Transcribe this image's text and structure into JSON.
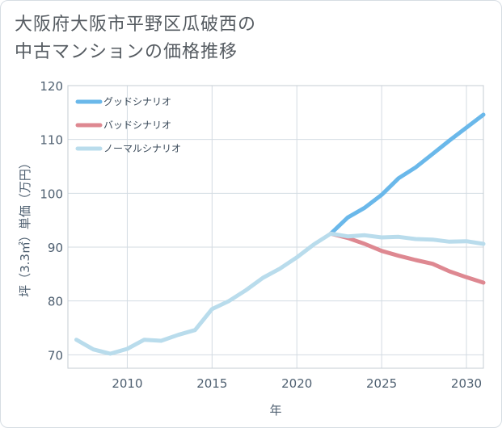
{
  "title": {
    "line1": "大阪府大阪市平野区瓜破西の",
    "line2": "中古マンションの価格推移"
  },
  "chart_data": {
    "type": "line",
    "xlabel": "年",
    "ylabel": "坪（3.3㎡）単価（万円）",
    "xlim": [
      2006.5,
      2031
    ],
    "ylim": [
      67.5,
      120
    ],
    "xticks": [
      2010,
      2015,
      2020,
      2025,
      2030
    ],
    "yticks": [
      70,
      80,
      90,
      100,
      110,
      120
    ],
    "grid": true,
    "legend_position": "top-left",
    "series": [
      {
        "name": "グッドシナリオ",
        "color": "#6ab8ea",
        "x": [
          2022,
          2023,
          2024,
          2025,
          2026,
          2027,
          2028,
          2029,
          2030,
          2031
        ],
        "y": [
          92.5,
          95.5,
          97.3,
          99.7,
          102.8,
          104.8,
          107.3,
          109.8,
          112.2,
          114.6
        ]
      },
      {
        "name": "バッドシナリオ",
        "color": "#de8891",
        "x": [
          2022,
          2023,
          2024,
          2025,
          2026,
          2027,
          2028,
          2029,
          2030,
          2031
        ],
        "y": [
          92.5,
          91.7,
          90.6,
          89.3,
          88.4,
          87.6,
          86.9,
          85.5,
          84.4,
          83.4
        ]
      },
      {
        "name": "ノーマルシナリオ",
        "color": "#b9dcec",
        "x": [
          2007,
          2008,
          2009,
          2010,
          2011,
          2012,
          2013,
          2014,
          2015,
          2016,
          2017,
          2018,
          2019,
          2020,
          2021,
          2022,
          2023,
          2024,
          2025,
          2026,
          2027,
          2028,
          2029,
          2030,
          2031
        ],
        "y": [
          72.8,
          71.0,
          70.2,
          71.1,
          72.8,
          72.6,
          73.7,
          74.6,
          78.5,
          80.0,
          82.0,
          84.3,
          86.0,
          88.1,
          90.5,
          92.5,
          92.0,
          92.2,
          91.8,
          91.9,
          91.5,
          91.4,
          91.0,
          91.1,
          90.6
        ]
      }
    ]
  }
}
